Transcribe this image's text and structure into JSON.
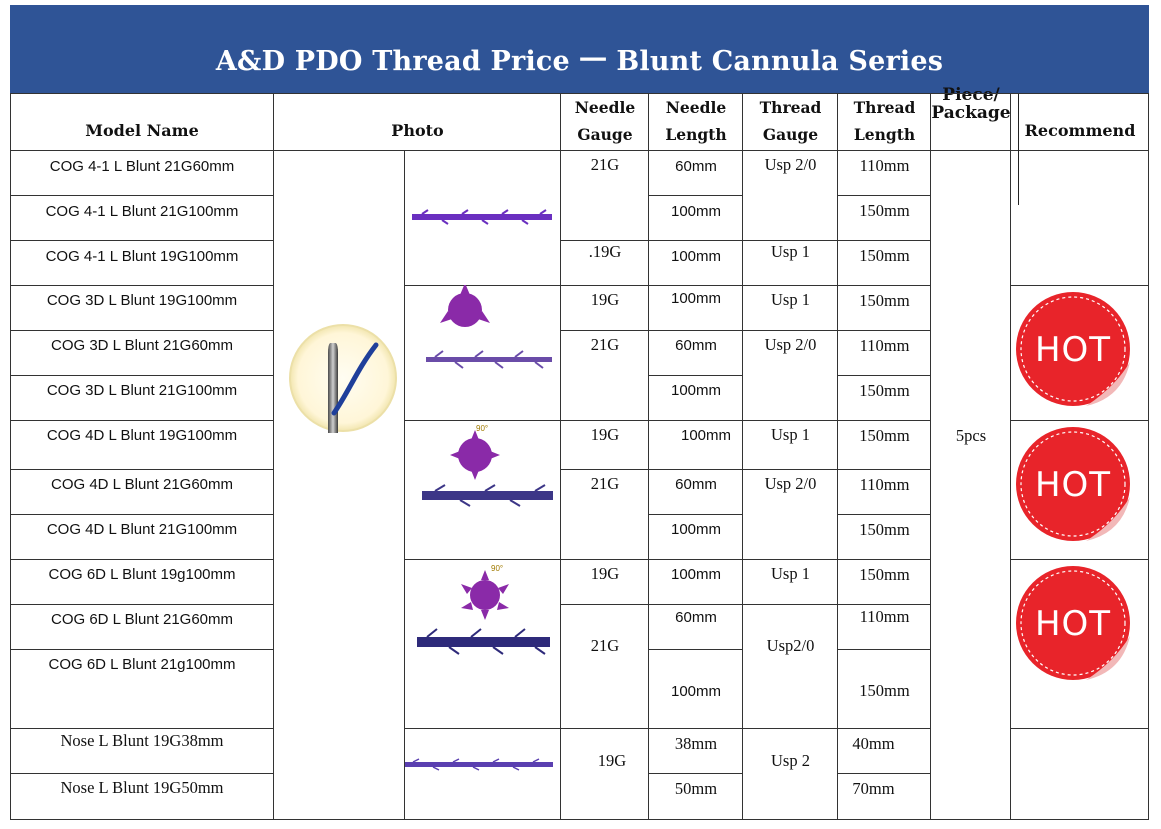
{
  "title": "A&D PDO Thread Price 一 Blunt Cannula Series",
  "headers": {
    "model": "Model Name",
    "photo": "Photo",
    "needle_gauge": [
      "Needle",
      "Gauge"
    ],
    "needle_length": [
      "Needle",
      "Length"
    ],
    "thread_gauge": [
      "Thread",
      "Gauge"
    ],
    "thread_length": [
      "Thread",
      "Length"
    ],
    "package": [
      "Piece/",
      "Package"
    ],
    "recommend": "Recommend"
  },
  "rows": [
    {
      "model": "COG 4-1 L Blunt 21G60mm"
    },
    {
      "model": "COG 4-1 L Blunt 21G100mm"
    },
    {
      "model": "COG 4-1 L Blunt 19G100mm"
    },
    {
      "model": "COG 3D L Blunt 19G100mm"
    },
    {
      "model": "COG 3D L Blunt 21G60mm"
    },
    {
      "model": "COG 3D L Blunt 21G100mm"
    },
    {
      "model": "COG 4D L Blunt 19G100mm"
    },
    {
      "model": "COG 4D L Blunt 21G60mm"
    },
    {
      "model": "COG 4D L Blunt 21G100mm"
    },
    {
      "model": "COG 6D L Blunt 19g100mm"
    },
    {
      "model": "COG 6D L Blunt 21G60mm"
    },
    {
      "model": "COG 6D L Blunt 21g100mm"
    },
    {
      "model": "Nose  L  Blunt 19G38mm"
    },
    {
      "model": "Nose  L  Blunt 19G50mm"
    }
  ],
  "needle_gauge": {
    "g1": "21G",
    "g2": ".19G",
    "g3": "19G",
    "g4": "21G",
    "g5": "19G",
    "g6": "21G",
    "g7": "19G",
    "g8": "21G",
    "g9": "19G"
  },
  "needle_length": {
    "l1": "60mm",
    "l2": "100mm",
    "l3": "100mm",
    "l4": "100mm",
    "l5": "60mm",
    "l6": "100mm",
    "l7": "100mm",
    "l8": "60mm",
    "l9": "100mm",
    "l10": "100mm",
    "l11": "60mm",
    "l12": "100mm",
    "l13": "38mm",
    "l14": "50mm"
  },
  "thread_gauge": {
    "t1": "Usp 2/0",
    "t2": "Usp 1",
    "t3": "Usp 1",
    "t4": "Usp 2/0",
    "t5": "Usp 1",
    "t6": "Usp 2/0",
    "t7": "Usp 1",
    "t8": "Usp2/0",
    "t9": "Usp 2"
  },
  "thread_length": {
    "r1": "110mm",
    "r2": "150mm",
    "r3": "150mm",
    "r4": "150mm",
    "r5": "110mm",
    "r6": "150mm",
    "r7": "150mm",
    "r8": "110mm",
    "r9": "150mm",
    "r10": "150mm",
    "r11": "110mm",
    "r12": "150mm",
    "r13": "40mm",
    "r14": "70mm"
  },
  "package": "5pcs",
  "hot_label": "HOT",
  "angle_label": "90°",
  "colors": {
    "banner": "#2f5496",
    "thread_purple": "#6a2fc0",
    "thread_navy": "#2e2a7a",
    "hot_red": "#e8242a"
  }
}
